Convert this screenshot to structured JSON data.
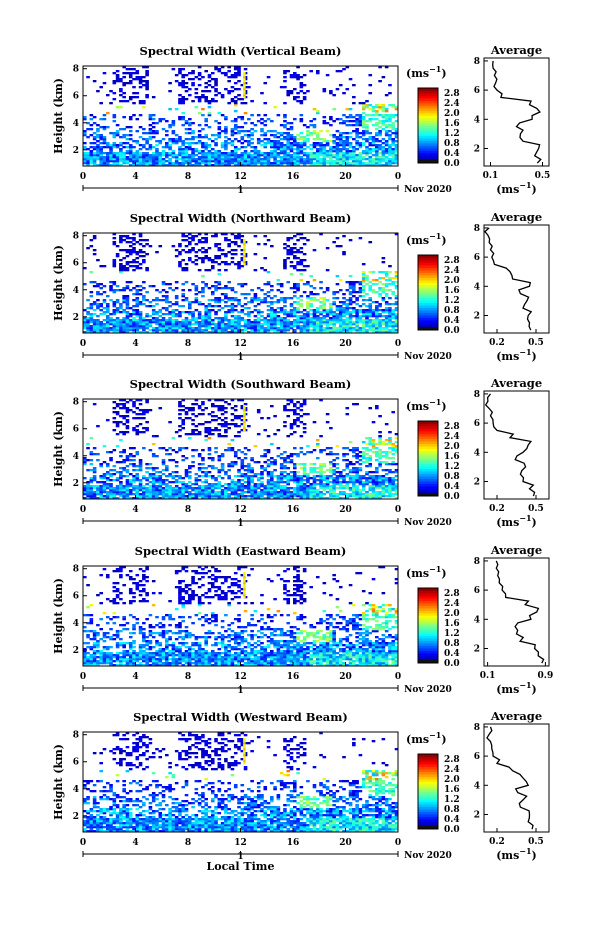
{
  "chart_data": [
    {
      "type": "heatmap",
      "beam": "vertical",
      "title": "Spectral Width (Vertical Beam)",
      "ylabel": "Height (km)",
      "xlabel": "",
      "x_ticks": [
        "0",
        "4",
        "8",
        "12",
        "16",
        "20",
        "0"
      ],
      "xlim": [
        0,
        24
      ],
      "y_ticks": [
        "2",
        "4",
        "6",
        "8"
      ],
      "ylim": [
        0.8,
        8.2
      ],
      "date_label": "1",
      "month_label": "Nov 2020",
      "colorbar": {
        "unit": "(ms",
        "unit_sup": "−1",
        "unit_close": ")",
        "ticks": [
          "0.0",
          "0.4",
          "0.8",
          "1.2",
          "1.6",
          "2.0",
          "2.4",
          "2.8"
        ],
        "range": [
          0.0,
          3.0
        ]
      },
      "average": {
        "title": "Average",
        "xlabel": "(ms",
        "xlabel_sup": "−1",
        "xlabel_close": ")",
        "x_ticks": [
          "0.1",
          "0.5"
        ],
        "xlim": [
          0.05,
          0.55
        ],
        "y_ticks": [
          "2",
          "4",
          "6",
          "8"
        ],
        "ylim": [
          0.8,
          8.2
        ],
        "heights": [
          1.0,
          1.5,
          2.0,
          2.5,
          3.0,
          3.5,
          4.0,
          4.5,
          5.0,
          5.5,
          6.0,
          6.5,
          7.0,
          7.5,
          8.0
        ],
        "values": [
          0.46,
          0.44,
          0.47,
          0.35,
          0.33,
          0.3,
          0.42,
          0.48,
          0.4,
          0.18,
          0.15,
          0.14,
          0.13,
          0.12,
          0.12
        ]
      }
    },
    {
      "type": "heatmap",
      "beam": "northward",
      "title": "Spectral Width (Northward Beam)",
      "ylabel": "Height (km)",
      "xlabel": "",
      "x_ticks": [
        "0",
        "4",
        "8",
        "12",
        "16",
        "20",
        "0"
      ],
      "xlim": [
        0,
        24
      ],
      "y_ticks": [
        "2",
        "4",
        "6",
        "8"
      ],
      "ylim": [
        0.8,
        8.2
      ],
      "date_label": "1",
      "month_label": "Nov 2020",
      "colorbar": {
        "unit": "(ms",
        "unit_sup": "−1",
        "unit_close": ")",
        "ticks": [
          "0.0",
          "0.4",
          "0.8",
          "1.2",
          "1.6",
          "2.0",
          "2.4",
          "2.8"
        ],
        "range": [
          0.0,
          3.0
        ]
      },
      "average": {
        "title": "Average",
        "xlabel": "(ms",
        "xlabel_sup": "−1",
        "xlabel_close": ")",
        "x_ticks": [
          "0.2",
          "0.5"
        ],
        "xlim": [
          0.1,
          0.6
        ],
        "y_ticks": [
          "2",
          "4",
          "6",
          "8"
        ],
        "ylim": [
          0.8,
          8.2
        ],
        "heights": [
          1.0,
          1.5,
          2.0,
          2.5,
          3.0,
          3.5,
          4.0,
          4.5,
          5.0,
          5.5,
          6.0,
          6.5,
          7.0,
          7.5,
          8.0
        ],
        "values": [
          0.46,
          0.45,
          0.44,
          0.4,
          0.43,
          0.38,
          0.45,
          0.32,
          0.3,
          0.18,
          0.16,
          0.15,
          0.14,
          0.13,
          0.14
        ]
      }
    },
    {
      "type": "heatmap",
      "beam": "southward",
      "title": "Spectral Width (Southward Beam)",
      "ylabel": "Height (km)",
      "xlabel": "",
      "x_ticks": [
        "0",
        "4",
        "8",
        "12",
        "16",
        "20",
        "0"
      ],
      "xlim": [
        0,
        24
      ],
      "y_ticks": [
        "2",
        "4",
        "6",
        "8"
      ],
      "ylim": [
        0.8,
        8.2
      ],
      "date_label": "1",
      "month_label": "Nov 2020",
      "colorbar": {
        "unit": "(ms",
        "unit_sup": "−1",
        "unit_close": ")",
        "ticks": [
          "0.0",
          "0.4",
          "0.8",
          "1.2",
          "1.6",
          "2.0",
          "2.4",
          "2.8"
        ],
        "range": [
          0.0,
          3.0
        ]
      },
      "average": {
        "title": "Average",
        "xlabel": "(ms",
        "xlabel_sup": "−1",
        "xlabel_close": ")",
        "x_ticks": [
          "0.2",
          "0.5"
        ],
        "xlim": [
          0.1,
          0.6
        ],
        "y_ticks": [
          "2",
          "4",
          "6",
          "8"
        ],
        "ylim": [
          0.8,
          8.2
        ],
        "heights": [
          1.0,
          1.5,
          2.0,
          2.5,
          3.0,
          3.5,
          4.0,
          4.5,
          5.0,
          5.5,
          6.0,
          6.5,
          7.0,
          7.5,
          8.0
        ],
        "values": [
          0.48,
          0.45,
          0.4,
          0.38,
          0.42,
          0.34,
          0.4,
          0.44,
          0.3,
          0.2,
          0.17,
          0.15,
          0.14,
          0.13,
          0.15
        ]
      }
    },
    {
      "type": "heatmap",
      "beam": "eastward",
      "title": "Spectral Width (Eastward Beam)",
      "ylabel": "Height (km)",
      "xlabel": "",
      "x_ticks": [
        "0",
        "4",
        "8",
        "12",
        "16",
        "20",
        "0"
      ],
      "xlim": [
        0,
        24
      ],
      "y_ticks": [
        "2",
        "4",
        "6",
        "8"
      ],
      "ylim": [
        0.8,
        8.2
      ],
      "date_label": "1",
      "month_label": "Nov 2020",
      "colorbar": {
        "unit": "(ms",
        "unit_sup": "−1",
        "unit_close": ")",
        "ticks": [
          "0.0",
          "0.4",
          "0.8",
          "1.2",
          "1.6",
          "2.0",
          "2.4",
          "2.8"
        ],
        "range": [
          0.0,
          3.0
        ]
      },
      "average": {
        "title": "Average",
        "xlabel": "(ms",
        "xlabel_sup": "−1",
        "xlabel_close": ")",
        "x_ticks": [
          "0.1",
          "0.9"
        ],
        "xlim": [
          0.05,
          0.95
        ],
        "y_ticks": [
          "2",
          "4",
          "6",
          "8"
        ],
        "ylim": [
          0.8,
          8.2
        ],
        "heights": [
          1.0,
          1.5,
          2.0,
          2.5,
          3.0,
          3.5,
          4.0,
          4.5,
          5.0,
          5.5,
          6.0,
          6.5,
          7.0,
          7.5,
          8.0
        ],
        "values": [
          0.85,
          0.8,
          0.75,
          0.55,
          0.5,
          0.48,
          0.7,
          0.78,
          0.62,
          0.35,
          0.3,
          0.26,
          0.24,
          0.22,
          0.22
        ]
      }
    },
    {
      "type": "heatmap",
      "beam": "westward",
      "title": "Spectral Width (Westward Beam)",
      "ylabel": "Height (km)",
      "xlabel": "Local Time",
      "x_ticks": [
        "0",
        "4",
        "8",
        "12",
        "16",
        "20",
        "0"
      ],
      "xlim": [
        0,
        24
      ],
      "y_ticks": [
        "2",
        "4",
        "6",
        "8"
      ],
      "ylim": [
        0.8,
        8.2
      ],
      "date_label": "1",
      "month_label": "Nov 2020",
      "colorbar": {
        "unit": "(ms",
        "unit_sup": "−1",
        "unit_close": ")",
        "ticks": [
          "0.0",
          "0.4",
          "0.8",
          "1.2",
          "1.6",
          "2.0",
          "2.4",
          "2.8"
        ],
        "range": [
          0.0,
          3.0
        ]
      },
      "average": {
        "title": "Average",
        "xlabel": "(ms",
        "xlabel_sup": "−1",
        "xlabel_close": ")",
        "x_ticks": [
          "0.2",
          "0.5"
        ],
        "xlim": [
          0.1,
          0.6
        ],
        "y_ticks": [
          "2",
          "4",
          "6",
          "8"
        ],
        "ylim": [
          0.8,
          8.2
        ],
        "heights": [
          1.0,
          1.5,
          2.0,
          2.5,
          3.0,
          3.5,
          4.0,
          4.5,
          5.0,
          5.5,
          6.0,
          6.5,
          7.0,
          7.5,
          8.0
        ],
        "values": [
          0.47,
          0.44,
          0.45,
          0.38,
          0.4,
          0.36,
          0.44,
          0.4,
          0.32,
          0.2,
          0.17,
          0.16,
          0.15,
          0.14,
          0.15
        ]
      }
    }
  ]
}
